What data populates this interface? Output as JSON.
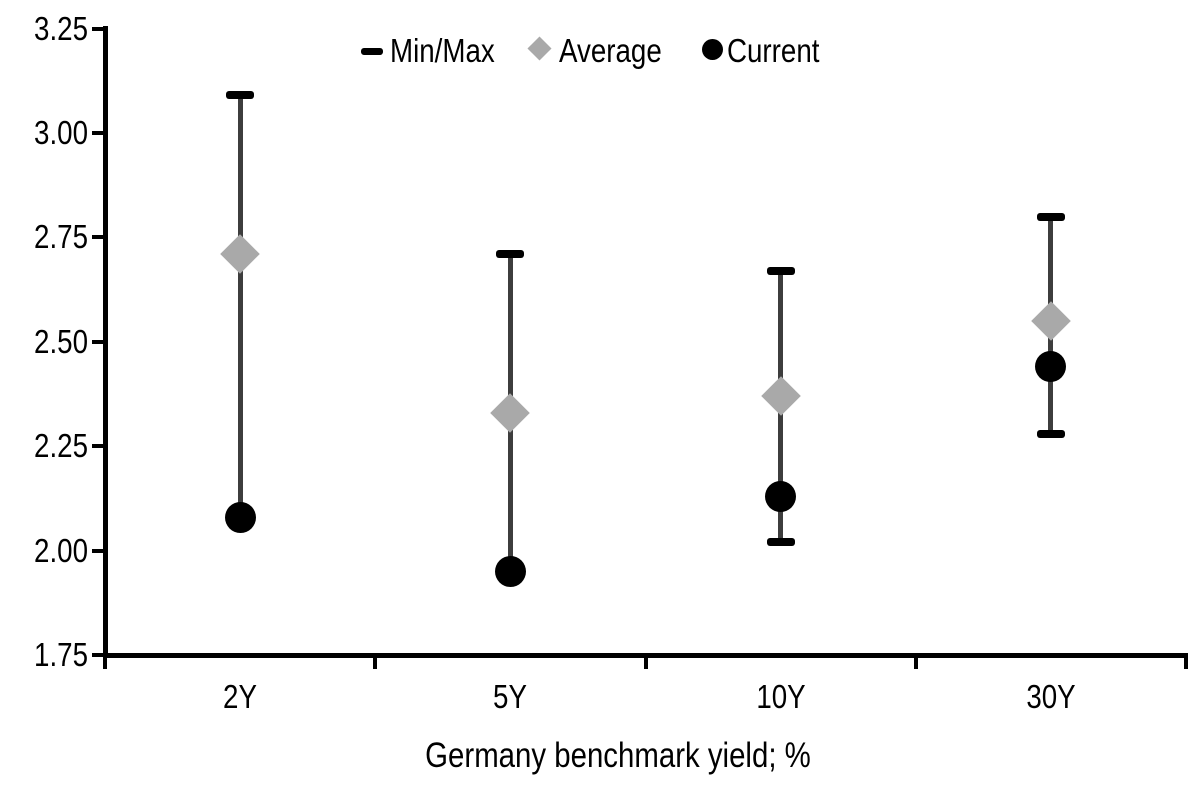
{
  "chart_data": {
    "type": "scatter",
    "subtype": "min-max-range-with-average-and-current",
    "title": "",
    "xlabel": "Germany benchmark yield; %",
    "ylabel": "",
    "ylim": [
      1.75,
      3.25
    ],
    "ytick_step": 0.25,
    "ytick_labels": [
      "1.75",
      "2.00",
      "2.25",
      "2.50",
      "2.75",
      "3.00",
      "3.25"
    ],
    "categories": [
      "2Y",
      "5Y",
      "10Y",
      "30Y"
    ],
    "series": [
      {
        "name": "Min/Max",
        "marker": "dash",
        "color": "#000000",
        "min": [
          2.08,
          1.95,
          2.02,
          2.28
        ],
        "max": [
          3.09,
          2.71,
          2.67,
          2.8
        ]
      },
      {
        "name": "Average",
        "marker": "diamond",
        "color": "#a9a9a9",
        "values": [
          2.71,
          2.33,
          2.37,
          2.55
        ]
      },
      {
        "name": "Current",
        "marker": "circle",
        "color": "#000000",
        "values": [
          2.08,
          1.95,
          2.13,
          2.44
        ]
      }
    ],
    "legend_position": "top-center",
    "grid": false
  },
  "colors": {
    "background": "#ffffff",
    "axis": "#000000",
    "whisker": "#3d3d3d",
    "average": "#a9a9a9",
    "current": "#000000"
  }
}
